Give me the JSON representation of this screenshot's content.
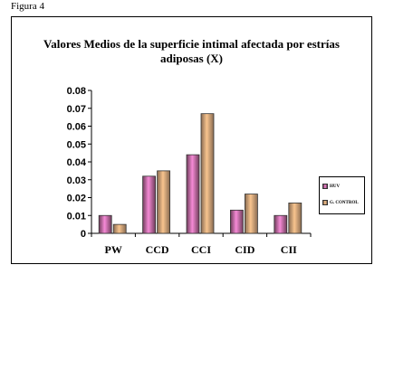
{
  "figure_label": "Figura 4",
  "chart_data": {
    "type": "bar",
    "title": "Valores Medios de la superficie intimal afectada por estrías\nadiposas (X)",
    "categories": [
      "PW",
      "CCD",
      "CCI",
      "CID",
      "CII"
    ],
    "series": [
      {
        "name": "HUV",
        "values": [
          0.01,
          0.032,
          0.044,
          0.013,
          0.01
        ],
        "color_light": "#f58ad6",
        "color_dark": "#6f3d5a"
      },
      {
        "name": "G. CONTROL",
        "values": [
          0.005,
          0.035,
          0.067,
          0.022,
          0.017
        ],
        "color_light": "#f8c48e",
        "color_dark": "#8a6c52"
      }
    ],
    "ylim": [
      0,
      0.08
    ],
    "yticks": [
      "0",
      "0.01",
      "0.02",
      "0.03",
      "0.04",
      "0.05",
      "0.06",
      "0.07",
      "0.08"
    ],
    "xlabel": "",
    "ylabel": "",
    "grid": false,
    "legend_position": "right"
  }
}
